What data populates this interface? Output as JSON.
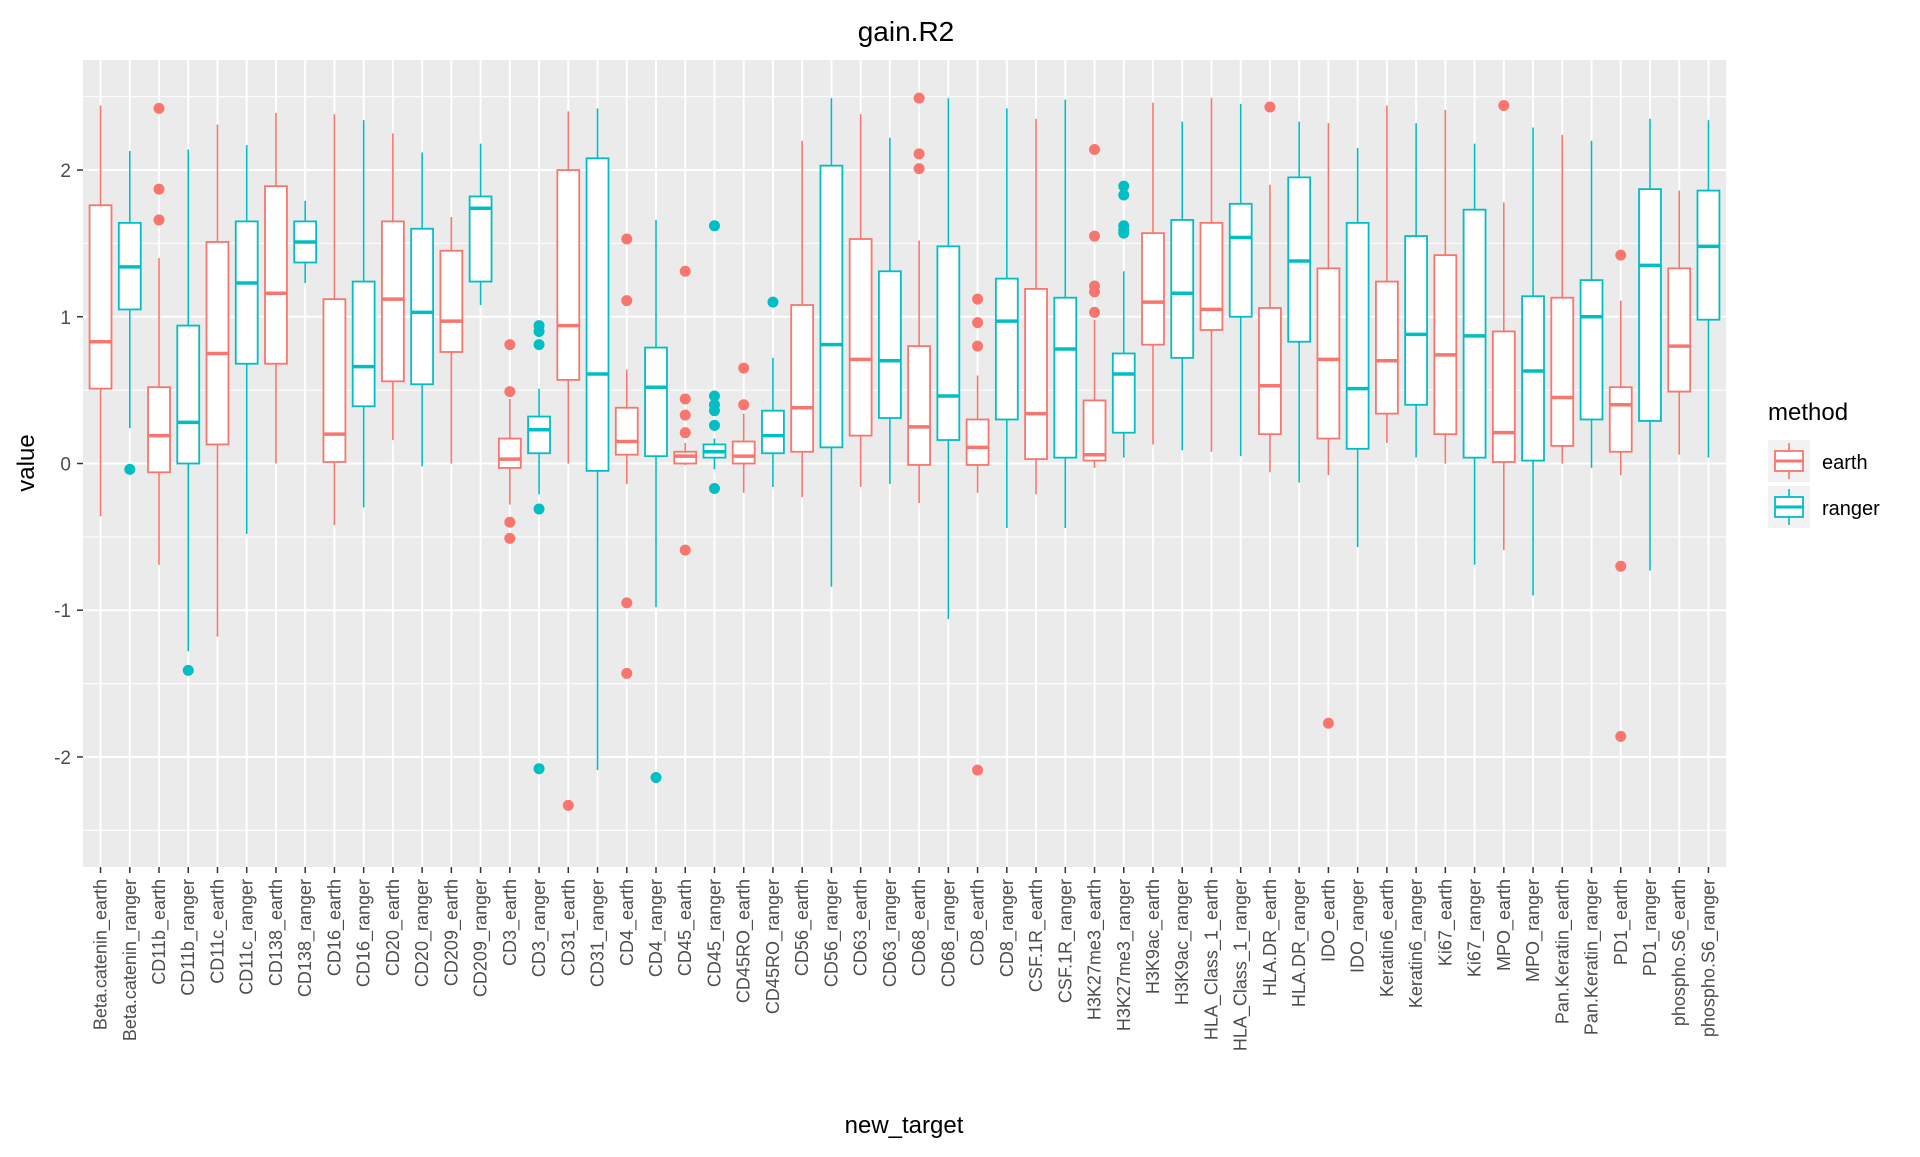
{
  "chart_data": {
    "type": "boxplot",
    "title": "gain.R2",
    "xlabel": "new_target",
    "ylabel": "value",
    "ylim": [
      -2.75,
      2.75
    ],
    "yticks": [
      -2,
      -1,
      0,
      1,
      2
    ],
    "ytick_labels": [
      "-2",
      "-1",
      "0",
      "1",
      "2"
    ],
    "grid": true,
    "legend": {
      "title": "method",
      "placement": "right",
      "entries": [
        {
          "name": "earth",
          "color": "#F8766D"
        },
        {
          "name": "ranger",
          "color": "#00BFC4"
        }
      ]
    },
    "categories": [
      "Beta.catenin_earth",
      "Beta.catenin_ranger",
      "CD11b_earth",
      "CD11b_ranger",
      "CD11c_earth",
      "CD11c_ranger",
      "CD138_earth",
      "CD138_ranger",
      "CD16_earth",
      "CD16_ranger",
      "CD20_earth",
      "CD20_ranger",
      "CD209_earth",
      "CD209_ranger",
      "CD3_earth",
      "CD3_ranger",
      "CD31_earth",
      "CD31_ranger",
      "CD4_earth",
      "CD4_ranger",
      "CD45_earth",
      "CD45_ranger",
      "CD45RO_earth",
      "CD45RO_ranger",
      "CD56_earth",
      "CD56_ranger",
      "CD63_earth",
      "CD63_ranger",
      "CD68_earth",
      "CD68_ranger",
      "CD8_earth",
      "CD8_ranger",
      "CSF.1R_earth",
      "CSF.1R_ranger",
      "H3K27me3_earth",
      "H3K27me3_ranger",
      "H3K9ac_earth",
      "H3K9ac_ranger",
      "HLA_Class_1_earth",
      "HLA_Class_1_ranger",
      "HLA.DR_earth",
      "HLA.DR_ranger",
      "IDO_earth",
      "IDO_ranger",
      "Keratin6_earth",
      "Keratin6_ranger",
      "Ki67_earth",
      "Ki67_ranger",
      "MPO_earth",
      "MPO_ranger",
      "Pan.Keratin_earth",
      "Pan.Keratin_ranger",
      "PD1_earth",
      "PD1_ranger",
      "phospho.S6_earth",
      "phospho.S6_ranger"
    ],
    "boxes": [
      {
        "method": "earth",
        "min": -0.36,
        "q1": 0.51,
        "median": 0.83,
        "q3": 1.76,
        "max": 2.44,
        "outliers": []
      },
      {
        "method": "ranger",
        "min": 0.24,
        "q1": 1.05,
        "median": 1.34,
        "q3": 1.64,
        "max": 2.13,
        "outliers": [
          -0.04
        ]
      },
      {
        "method": "earth",
        "min": -0.69,
        "q1": -0.06,
        "median": 0.19,
        "q3": 0.52,
        "max": 1.4,
        "outliers": [
          2.42,
          1.87,
          1.66
        ]
      },
      {
        "method": "ranger",
        "min": -1.28,
        "q1": 0.0,
        "median": 0.28,
        "q3": 0.94,
        "max": 2.14,
        "outliers": [
          -1.41
        ]
      },
      {
        "method": "earth",
        "min": -1.18,
        "q1": 0.13,
        "median": 0.75,
        "q3": 1.51,
        "max": 2.31,
        "outliers": []
      },
      {
        "method": "ranger",
        "min": -0.48,
        "q1": 0.68,
        "median": 1.23,
        "q3": 1.65,
        "max": 2.17,
        "outliers": []
      },
      {
        "method": "earth",
        "min": 0.0,
        "q1": 0.68,
        "median": 1.16,
        "q3": 1.89,
        "max": 2.39,
        "outliers": []
      },
      {
        "method": "ranger",
        "min": 1.23,
        "q1": 1.37,
        "median": 1.51,
        "q3": 1.65,
        "max": 1.79,
        "outliers": []
      },
      {
        "method": "earth",
        "min": -0.42,
        "q1": 0.01,
        "median": 0.2,
        "q3": 1.12,
        "max": 2.38,
        "outliers": []
      },
      {
        "method": "ranger",
        "min": -0.3,
        "q1": 0.39,
        "median": 0.66,
        "q3": 1.24,
        "max": 2.34,
        "outliers": []
      },
      {
        "method": "earth",
        "min": 0.16,
        "q1": 0.56,
        "median": 1.12,
        "q3": 1.65,
        "max": 2.25,
        "outliers": []
      },
      {
        "method": "ranger",
        "min": -0.02,
        "q1": 0.54,
        "median": 1.03,
        "q3": 1.6,
        "max": 2.12,
        "outliers": []
      },
      {
        "method": "earth",
        "min": 0.0,
        "q1": 0.76,
        "median": 0.97,
        "q3": 1.45,
        "max": 1.68,
        "outliers": []
      },
      {
        "method": "ranger",
        "min": 1.08,
        "q1": 1.24,
        "median": 1.74,
        "q3": 1.82,
        "max": 2.18,
        "outliers": []
      },
      {
        "method": "earth",
        "min": -0.28,
        "q1": -0.03,
        "median": 0.03,
        "q3": 0.17,
        "max": 0.44,
        "outliers": [
          0.81,
          0.49,
          -0.4,
          -0.51
        ]
      },
      {
        "method": "ranger",
        "min": -0.21,
        "q1": 0.07,
        "median": 0.23,
        "q3": 0.32,
        "max": 0.51,
        "outliers": [
          0.94,
          0.9,
          0.81,
          -0.31,
          -2.08
        ]
      },
      {
        "method": "earth",
        "min": 0.0,
        "q1": 0.57,
        "median": 0.94,
        "q3": 2.0,
        "max": 2.4,
        "outliers": [
          -2.33
        ]
      },
      {
        "method": "ranger",
        "min": -2.09,
        "q1": -0.05,
        "median": 0.61,
        "q3": 2.08,
        "max": 2.42,
        "outliers": []
      },
      {
        "method": "earth",
        "min": -0.14,
        "q1": 0.06,
        "median": 0.15,
        "q3": 0.38,
        "max": 0.64,
        "outliers": [
          1.53,
          1.11,
          -0.95,
          -1.43
        ]
      },
      {
        "method": "ranger",
        "min": -0.98,
        "q1": 0.05,
        "median": 0.52,
        "q3": 0.79,
        "max": 1.66,
        "outliers": [
          -2.14
        ]
      },
      {
        "method": "earth",
        "min": -0.01,
        "q1": 0.0,
        "median": 0.05,
        "q3": 0.08,
        "max": 0.14,
        "outliers": [
          1.31,
          0.44,
          0.33,
          0.21,
          -0.59
        ]
      },
      {
        "method": "ranger",
        "min": -0.04,
        "q1": 0.04,
        "median": 0.08,
        "q3": 0.13,
        "max": 0.17,
        "outliers": [
          1.62,
          0.46,
          0.4,
          0.36,
          0.26,
          -0.17
        ]
      },
      {
        "method": "earth",
        "min": -0.2,
        "q1": 0.0,
        "median": 0.05,
        "q3": 0.15,
        "max": 0.34,
        "outliers": [
          0.65,
          0.4
        ]
      },
      {
        "method": "ranger",
        "min": -0.16,
        "q1": 0.07,
        "median": 0.19,
        "q3": 0.36,
        "max": 0.72,
        "outliers": [
          1.1
        ]
      },
      {
        "method": "earth",
        "min": -0.23,
        "q1": 0.08,
        "median": 0.38,
        "q3": 1.08,
        "max": 2.2,
        "outliers": []
      },
      {
        "method": "ranger",
        "min": -0.84,
        "q1": 0.11,
        "median": 0.81,
        "q3": 2.03,
        "max": 2.49,
        "outliers": []
      },
      {
        "method": "earth",
        "min": -0.16,
        "q1": 0.19,
        "median": 0.71,
        "q3": 1.53,
        "max": 2.38,
        "outliers": []
      },
      {
        "method": "ranger",
        "min": -0.14,
        "q1": 0.31,
        "median": 0.7,
        "q3": 1.31,
        "max": 2.22,
        "outliers": []
      },
      {
        "method": "earth",
        "min": -0.27,
        "q1": -0.01,
        "median": 0.25,
        "q3": 0.8,
        "max": 1.52,
        "outliers": [
          2.49,
          2.11,
          2.01
        ]
      },
      {
        "method": "ranger",
        "min": -1.06,
        "q1": 0.16,
        "median": 0.46,
        "q3": 1.48,
        "max": 2.49,
        "outliers": []
      },
      {
        "method": "earth",
        "min": -0.2,
        "q1": -0.01,
        "median": 0.11,
        "q3": 0.3,
        "max": 0.6,
        "outliers": [
          1.12,
          0.96,
          0.8,
          -2.09
        ]
      },
      {
        "method": "ranger",
        "min": -0.44,
        "q1": 0.3,
        "median": 0.97,
        "q3": 1.26,
        "max": 2.42,
        "outliers": []
      },
      {
        "method": "earth",
        "min": -0.21,
        "q1": 0.03,
        "median": 0.34,
        "q3": 1.19,
        "max": 2.35,
        "outliers": []
      },
      {
        "method": "ranger",
        "min": -0.44,
        "q1": 0.04,
        "median": 0.78,
        "q3": 1.13,
        "max": 2.48,
        "outliers": []
      },
      {
        "method": "earth",
        "min": -0.03,
        "q1": 0.02,
        "median": 0.06,
        "q3": 0.43,
        "max": 0.98,
        "outliers": [
          2.14,
          1.55,
          1.21,
          1.17,
          1.03
        ]
      },
      {
        "method": "ranger",
        "min": 0.04,
        "q1": 0.21,
        "median": 0.61,
        "q3": 0.75,
        "max": 1.31,
        "outliers": [
          1.89,
          1.83,
          1.62,
          1.59,
          1.57
        ]
      },
      {
        "method": "earth",
        "min": 0.13,
        "q1": 0.81,
        "median": 1.1,
        "q3": 1.57,
        "max": 2.46,
        "outliers": []
      },
      {
        "method": "ranger",
        "min": 0.09,
        "q1": 0.72,
        "median": 1.16,
        "q3": 1.66,
        "max": 2.33,
        "outliers": []
      },
      {
        "method": "earth",
        "min": 0.08,
        "q1": 0.91,
        "median": 1.05,
        "q3": 1.64,
        "max": 2.49,
        "outliers": []
      },
      {
        "method": "ranger",
        "min": 0.05,
        "q1": 1.0,
        "median": 1.54,
        "q3": 1.77,
        "max": 2.45,
        "outliers": []
      },
      {
        "method": "earth",
        "min": -0.06,
        "q1": 0.2,
        "median": 0.53,
        "q3": 1.06,
        "max": 1.9,
        "outliers": [
          2.43
        ]
      },
      {
        "method": "ranger",
        "min": -0.13,
        "q1": 0.83,
        "median": 1.38,
        "q3": 1.95,
        "max": 2.33,
        "outliers": []
      },
      {
        "method": "earth",
        "min": -0.08,
        "q1": 0.17,
        "median": 0.71,
        "q3": 1.33,
        "max": 2.32,
        "outliers": [
          -1.77
        ]
      },
      {
        "method": "ranger",
        "min": -0.57,
        "q1": 0.1,
        "median": 0.51,
        "q3": 1.64,
        "max": 2.15,
        "outliers": []
      },
      {
        "method": "earth",
        "min": 0.14,
        "q1": 0.34,
        "median": 0.7,
        "q3": 1.24,
        "max": 2.44,
        "outliers": []
      },
      {
        "method": "ranger",
        "min": 0.04,
        "q1": 0.4,
        "median": 0.88,
        "q3": 1.55,
        "max": 2.32,
        "outliers": []
      },
      {
        "method": "earth",
        "min": 0.0,
        "q1": 0.2,
        "median": 0.74,
        "q3": 1.42,
        "max": 2.41,
        "outliers": []
      },
      {
        "method": "ranger",
        "min": -0.69,
        "q1": 0.04,
        "median": 0.87,
        "q3": 1.73,
        "max": 2.18,
        "outliers": []
      },
      {
        "method": "earth",
        "min": -0.59,
        "q1": 0.01,
        "median": 0.21,
        "q3": 0.9,
        "max": 1.78,
        "outliers": [
          2.44
        ]
      },
      {
        "method": "ranger",
        "min": -0.9,
        "q1": 0.02,
        "median": 0.63,
        "q3": 1.14,
        "max": 2.29,
        "outliers": []
      },
      {
        "method": "earth",
        "min": 0.0,
        "q1": 0.12,
        "median": 0.45,
        "q3": 1.13,
        "max": 2.24,
        "outliers": []
      },
      {
        "method": "ranger",
        "min": -0.03,
        "q1": 0.3,
        "median": 1.0,
        "q3": 1.25,
        "max": 2.2,
        "outliers": []
      },
      {
        "method": "earth",
        "min": -0.08,
        "q1": 0.08,
        "median": 0.4,
        "q3": 0.52,
        "max": 1.11,
        "outliers": [
          1.42,
          -0.7,
          -1.86
        ]
      },
      {
        "method": "ranger",
        "min": -0.73,
        "q1": 0.29,
        "median": 1.35,
        "q3": 1.87,
        "max": 2.35,
        "outliers": []
      },
      {
        "method": "earth",
        "min": 0.06,
        "q1": 0.49,
        "median": 0.8,
        "q3": 1.33,
        "max": 1.86,
        "outliers": []
      },
      {
        "method": "ranger",
        "min": 0.04,
        "q1": 0.98,
        "median": 1.48,
        "q3": 1.86,
        "max": 2.34,
        "outliers": []
      }
    ]
  }
}
